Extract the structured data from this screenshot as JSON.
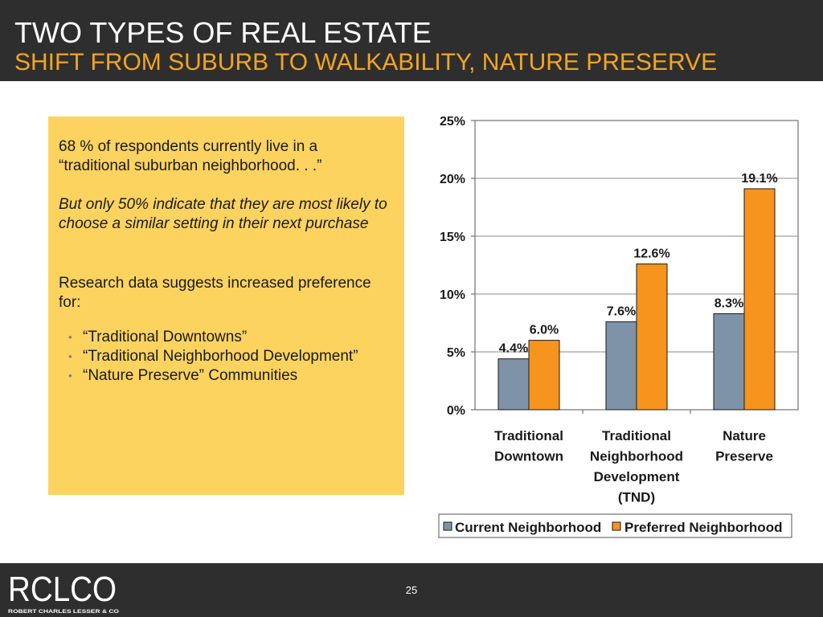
{
  "header": {
    "title": "TWO TYPES OF REAL ESTATE",
    "subtitle": "SHIFT FROM SUBURB TO WALKABILITY, NATURE PRESERVE"
  },
  "panel": {
    "line1": "68 % of respondents currently live in a “traditional suburban neighborhood. . .”",
    "line2": "But only 50% indicate that they are most likely to choose a similar setting in their next purchase",
    "line3": "Research data suggests increased preference for:",
    "bullets": [
      "“Traditional Downtowns”",
      "“Traditional Neighborhood Development”",
      "“Nature Preserve” Communities"
    ]
  },
  "chart_data": {
    "type": "bar",
    "categories": [
      [
        "Traditional",
        "Downtown"
      ],
      [
        "Traditional",
        "Neighborhood",
        "Development",
        "(TND)"
      ],
      [
        "Nature",
        "Preserve"
      ]
    ],
    "series": [
      {
        "name": "Current Neighborhood",
        "values": [
          4.4,
          7.6,
          8.3
        ],
        "labels": [
          "4.4%",
          "7.6%",
          "8.3%"
        ],
        "color": "#7f93a8"
      },
      {
        "name": "Preferred Neighborhood",
        "values": [
          6.0,
          12.6,
          19.1
        ],
        "labels": [
          "6.0%",
          "12.6%",
          "19.1%"
        ],
        "color": "#f7941d"
      }
    ],
    "ylim": [
      0,
      25
    ],
    "yticks": [
      0,
      5,
      10,
      15,
      20,
      25
    ],
    "ytick_labels": [
      "0%",
      "5%",
      "10%",
      "15%",
      "20%",
      "25%"
    ],
    "grid": true,
    "legend": "bottom"
  },
  "footer": {
    "logo_text": "RCLCO",
    "logo_tagline": "ROBERT CHARLES LESSER & CO",
    "page_number": "25"
  }
}
